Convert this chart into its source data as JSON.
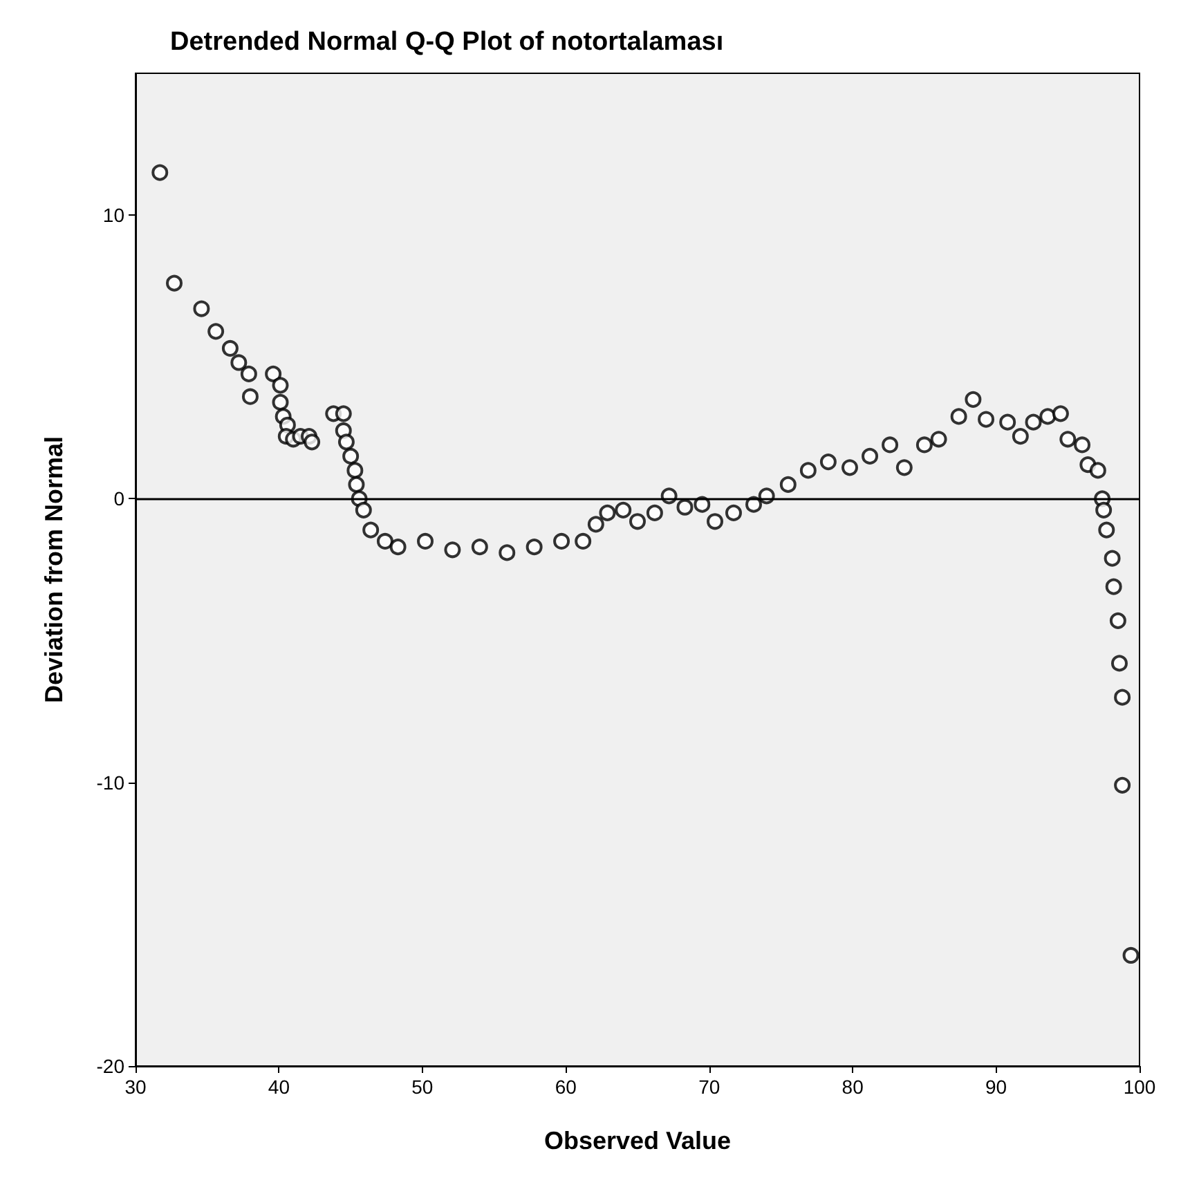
{
  "chart_data": {
    "type": "scatter",
    "title": "Detrended Normal Q-Q Plot of notortalaması",
    "xlabel": "Observed Value",
    "ylabel": "Deviation from Normal",
    "x": [
      31.7,
      32.7,
      34.6,
      35.6,
      36.6,
      37.2,
      37.9,
      38.0,
      39.6,
      40.1,
      40.1,
      40.3,
      40.6,
      40.5,
      41.0,
      41.5,
      42.1,
      42.3,
      43.8,
      44.5,
      44.5,
      44.7,
      45.0,
      45.3,
      45.4,
      45.6,
      45.9,
      46.4,
      47.4,
      48.3,
      50.2,
      52.1,
      54.0,
      55.9,
      57.8,
      59.7,
      61.2,
      62.1,
      62.9,
      64.0,
      65.0,
      66.2,
      67.2,
      68.3,
      69.5,
      70.4,
      71.7,
      73.1,
      74.0,
      75.5,
      76.9,
      78.3,
      79.8,
      81.2,
      82.6,
      83.6,
      85.0,
      86.0,
      87.4,
      88.4,
      89.3,
      90.8,
      91.7,
      92.6,
      93.6,
      94.5,
      95.0,
      96.0,
      96.4,
      97.1,
      97.4,
      97.5,
      97.7,
      98.1,
      98.2,
      98.5,
      98.6,
      98.8,
      98.8,
      99.4
    ],
    "series": [
      {
        "color": "#000000",
        "values": [
          11.5,
          7.6,
          6.7,
          5.9,
          5.3,
          4.8,
          4.4,
          3.6,
          4.4,
          4.0,
          3.4,
          2.9,
          2.6,
          2.2,
          2.1,
          2.2,
          2.2,
          2.0,
          3.0,
          3.0,
          2.4,
          2.0,
          1.5,
          1.0,
          0.5,
          0.0,
          -0.4,
          -1.1,
          -1.5,
          -1.7,
          -1.5,
          -1.8,
          -1.7,
          -1.9,
          -1.7,
          -1.5,
          -1.5,
          -0.9,
          -0.5,
          -0.4,
          -0.8,
          -0.5,
          0.1,
          -0.3,
          -0.2,
          -0.8,
          -0.5,
          -0.2,
          0.1,
          0.5,
          1.0,
          1.3,
          1.1,
          1.5,
          1.9,
          1.1,
          1.9,
          2.1,
          2.9,
          3.5,
          2.8,
          2.7,
          2.2,
          2.7,
          2.9,
          3.0,
          2.1,
          1.9,
          1.2,
          1.0,
          0.0,
          -0.4,
          -1.1,
          -2.1,
          -3.1,
          -4.3,
          -5.8,
          -7.0,
          -10.1,
          -16.1
        ]
      }
    ],
    "xlim": [
      30,
      100
    ],
    "xticks": [
      30,
      40,
      50,
      60,
      70,
      80,
      90,
      100
    ],
    "ylim": [
      -20,
      15
    ],
    "yticks": [
      -20,
      -10,
      0,
      10
    ],
    "ref_lines": [
      {
        "axis": "y",
        "value": 0,
        "color": "#000000"
      }
    ],
    "marker": "circle",
    "grid": false
  }
}
